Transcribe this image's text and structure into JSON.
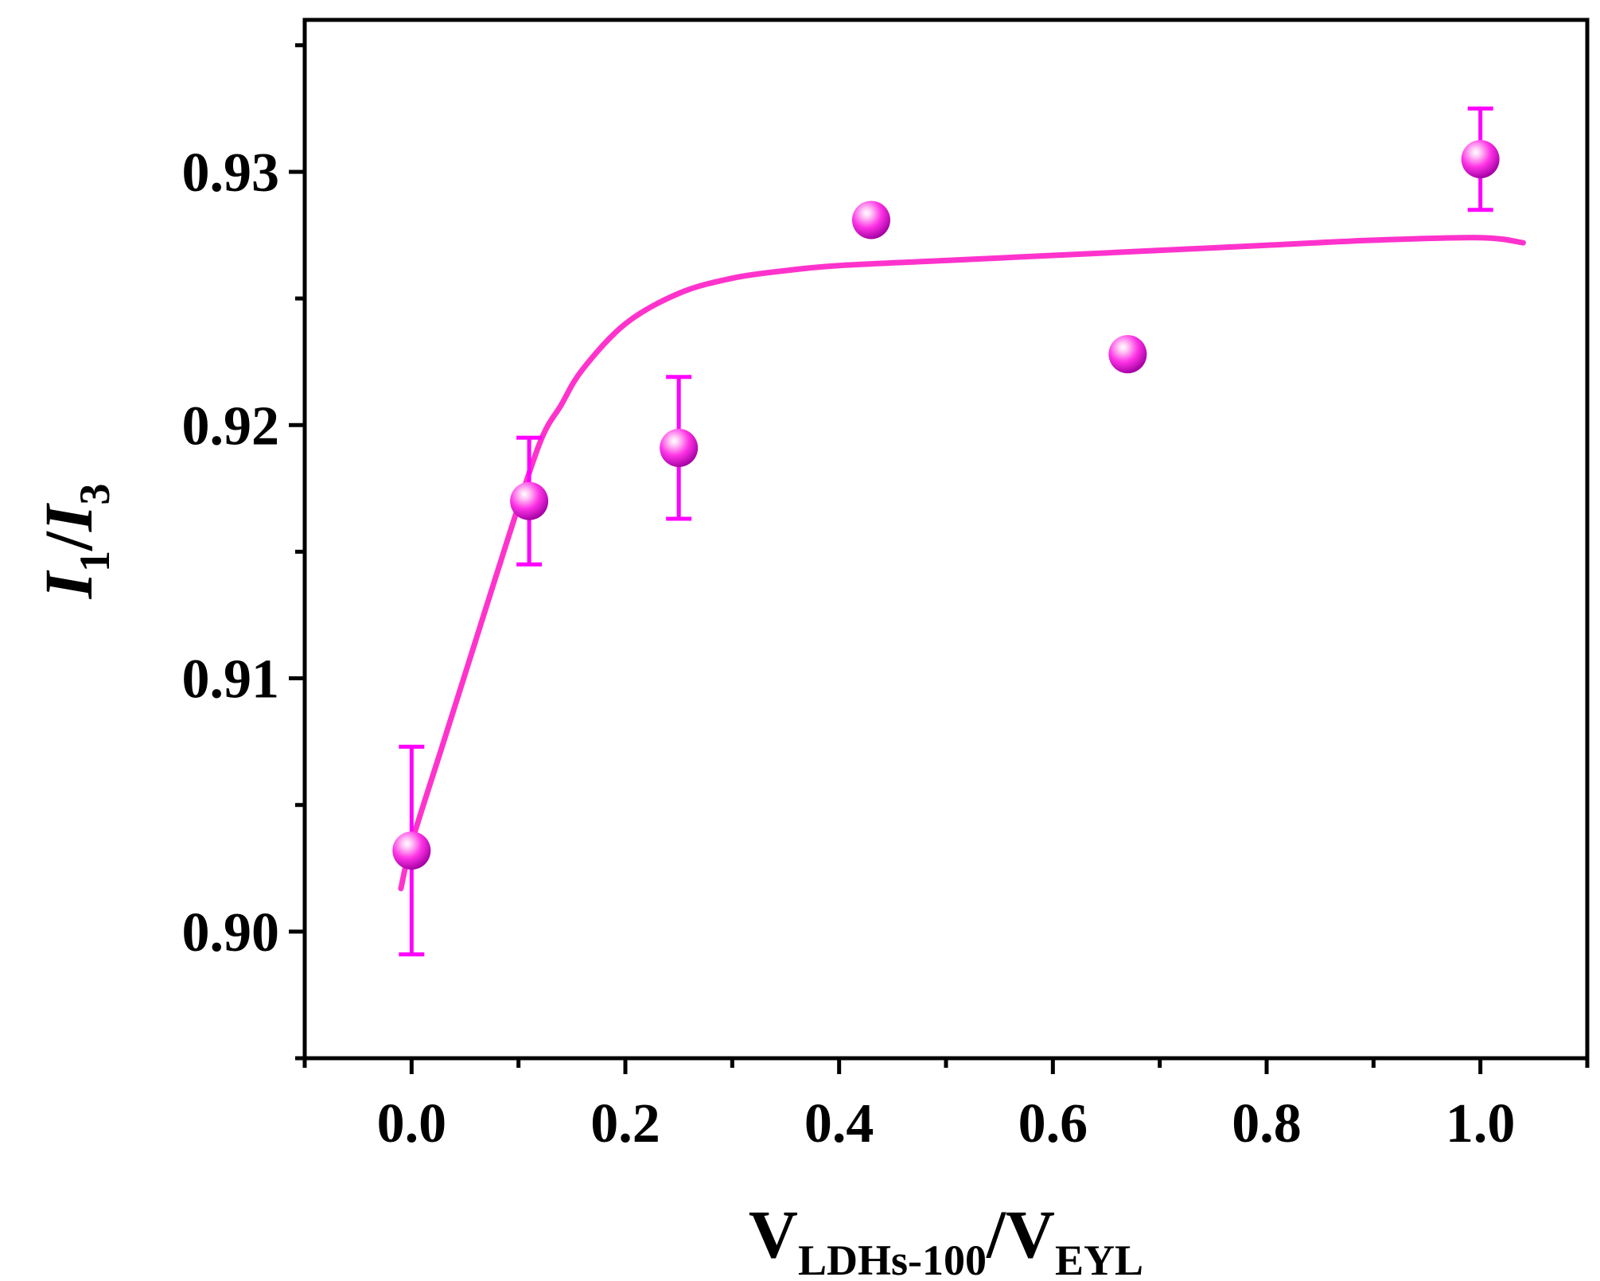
{
  "chart_data": {
    "type": "scatter",
    "xlabel": {
      "main": "V",
      "sub1": "LDHs-100",
      "slash": "/V",
      "sub2": "EYL"
    },
    "ylabel": {
      "i1": "I",
      "sub1": "1",
      "slash": "/",
      "i3": "I",
      "sub3": "3"
    },
    "xlim": [
      -0.1,
      1.1
    ],
    "ylim": [
      0.895,
      0.936
    ],
    "xticks": [
      "0.0",
      "0.2",
      "0.4",
      "0.6",
      "0.8",
      "1.0"
    ],
    "xtick_values": [
      0.0,
      0.2,
      0.4,
      0.6,
      0.8,
      1.0
    ],
    "yticks": [
      "0.90",
      "0.91",
      "0.92",
      "0.93"
    ],
    "ytick_values": [
      0.9,
      0.91,
      0.92,
      0.93
    ],
    "series": [
      {
        "type": "scatter",
        "color": "#ff00ff",
        "points": [
          {
            "x": 0.0,
            "y": 0.9032,
            "err": 0.0041
          },
          {
            "x": 0.11,
            "y": 0.917,
            "err": 0.0025
          },
          {
            "x": 0.25,
            "y": 0.9191,
            "err": 0.0028
          },
          {
            "x": 0.43,
            "y": 0.9281,
            "err": 0.0004
          },
          {
            "x": 0.67,
            "y": 0.9228,
            "err": 0.0004
          },
          {
            "x": 1.0,
            "y": 0.9305,
            "err": 0.002
          }
        ]
      },
      {
        "type": "line",
        "color": "#ff33cc",
        "x": [
          -0.01,
          0.0,
          0.03,
          0.06,
          0.09,
          0.12,
          0.14,
          0.16,
          0.2,
          0.25,
          0.3,
          0.35,
          0.4,
          0.5,
          0.6,
          0.7,
          0.8,
          0.9,
          1.0,
          1.04
        ],
        "y": [
          0.9017,
          0.9035,
          0.9075,
          0.9115,
          0.9155,
          0.9193,
          0.9208,
          0.9222,
          0.924,
          0.9252,
          0.9258,
          0.9261,
          0.9263,
          0.9265,
          0.9267,
          0.9269,
          0.9271,
          0.9273,
          0.9274,
          0.9272
        ]
      }
    ]
  }
}
